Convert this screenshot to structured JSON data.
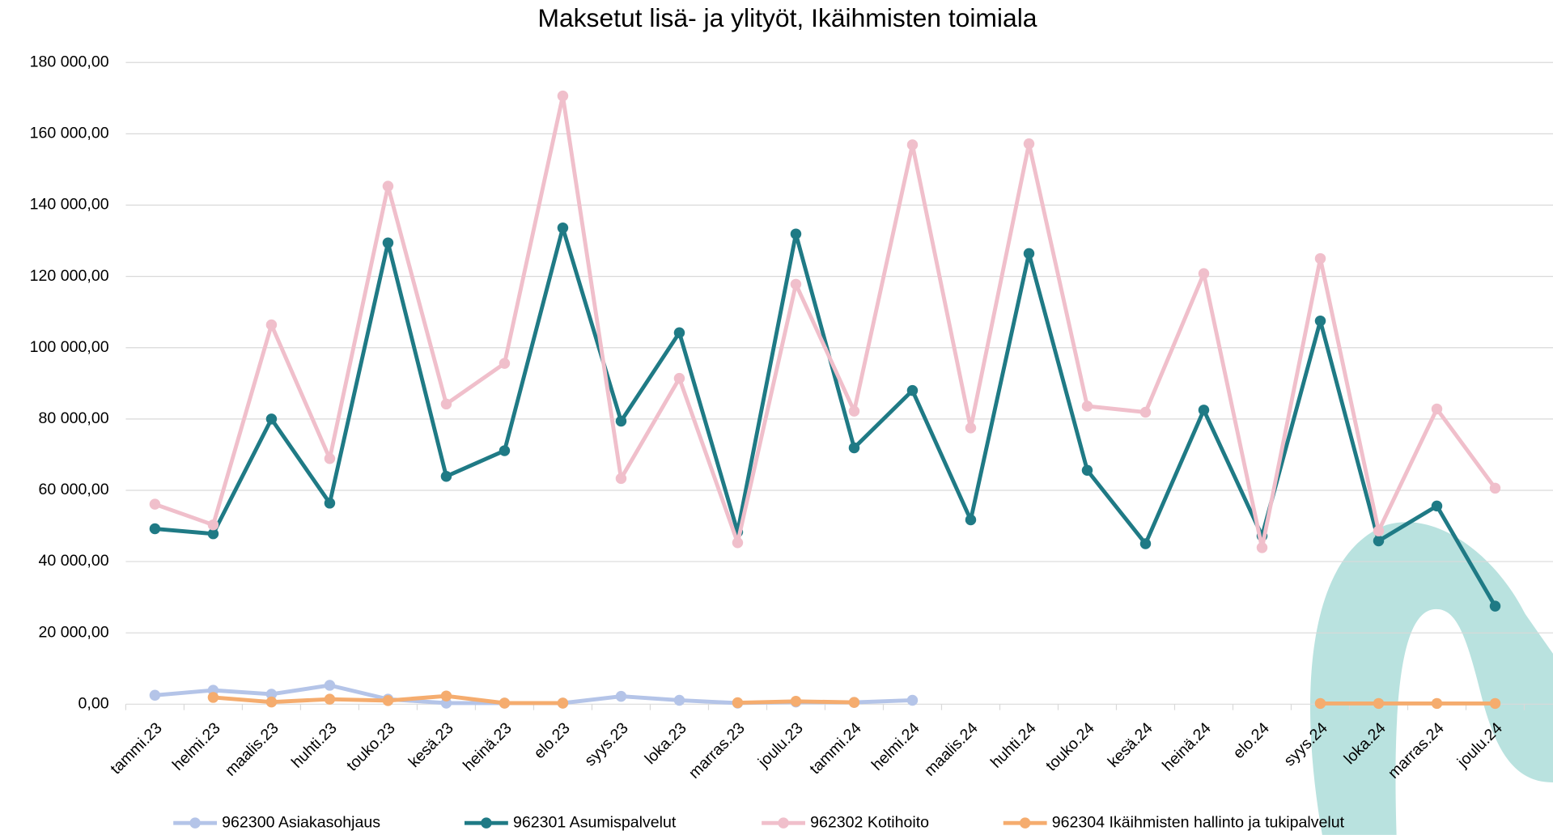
{
  "chart_data": {
    "type": "line",
    "title": "Maksetut lisä- ja ylityöt, Ikäihmisten toimiala",
    "categories": [
      "tammi.23",
      "helmi.23",
      "maalis.23",
      "huhti.23",
      "touko.23",
      "kesä.23",
      "heinä.23",
      "elo.23",
      "syys.23",
      "loka.23",
      "marras.23",
      "joulu.23",
      "tammi.24",
      "helmi.24",
      "maalis.24",
      "huhti.24",
      "touko.24",
      "kesä.24",
      "heinä.24",
      "elo.24",
      "syys.24",
      "loka.24",
      "marras.24",
      "joulu.24"
    ],
    "series": [
      {
        "name": "962300 Asiakasohjaus",
        "color": "#b4c4e8",
        "values": [
          2500,
          3900,
          2800,
          5300,
          1400,
          300,
          300,
          300,
          2200,
          1100,
          300,
          600,
          500,
          1100,
          null,
          null,
          null,
          null,
          null,
          null,
          null,
          null,
          null,
          null
        ]
      },
      {
        "name": "962301 Asumispalvelut",
        "color": "#1f7a85",
        "values": [
          49200,
          47800,
          80000,
          56400,
          129400,
          63900,
          71100,
          133600,
          79400,
          104200,
          48300,
          131900,
          71900,
          88000,
          51700,
          126400,
          65600,
          45000,
          82500,
          47200,
          107500,
          45800,
          55600,
          27500
        ]
      },
      {
        "name": "962302 Kotihoito",
        "color": "#f0bfcb",
        "values": [
          56100,
          50300,
          106400,
          68900,
          145300,
          84200,
          95600,
          170600,
          63300,
          91400,
          45300,
          117800,
          82200,
          156900,
          77500,
          157200,
          83600,
          81900,
          120800,
          43900,
          125000,
          48600,
          82800,
          60600
        ]
      },
      {
        "name": "962304 Ikäihmisten hallinto ja tukipalvelut",
        "color": "#f5ac6e",
        "values": [
          null,
          1900,
          600,
          1400,
          1000,
          2300,
          300,
          300,
          null,
          null,
          400,
          800,
          500,
          null,
          null,
          null,
          null,
          null,
          null,
          null,
          200,
          200,
          200,
          200
        ]
      }
    ],
    "ylim": [
      0,
      180000
    ],
    "yticks": [
      {
        "value": 0,
        "label": "0,00"
      },
      {
        "value": 20000,
        "label": "20 000,00"
      },
      {
        "value": 40000,
        "label": "40 000,00"
      },
      {
        "value": 60000,
        "label": "60 000,00"
      },
      {
        "value": 80000,
        "label": "80 000,00"
      },
      {
        "value": 100000,
        "label": "100 000,00"
      },
      {
        "value": 120000,
        "label": "120 000,00"
      },
      {
        "value": 140000,
        "label": "140 000,00"
      },
      {
        "value": 160000,
        "label": "160 000,00"
      },
      {
        "value": 180000,
        "label": "180 000,00"
      }
    ],
    "grid": true
  }
}
